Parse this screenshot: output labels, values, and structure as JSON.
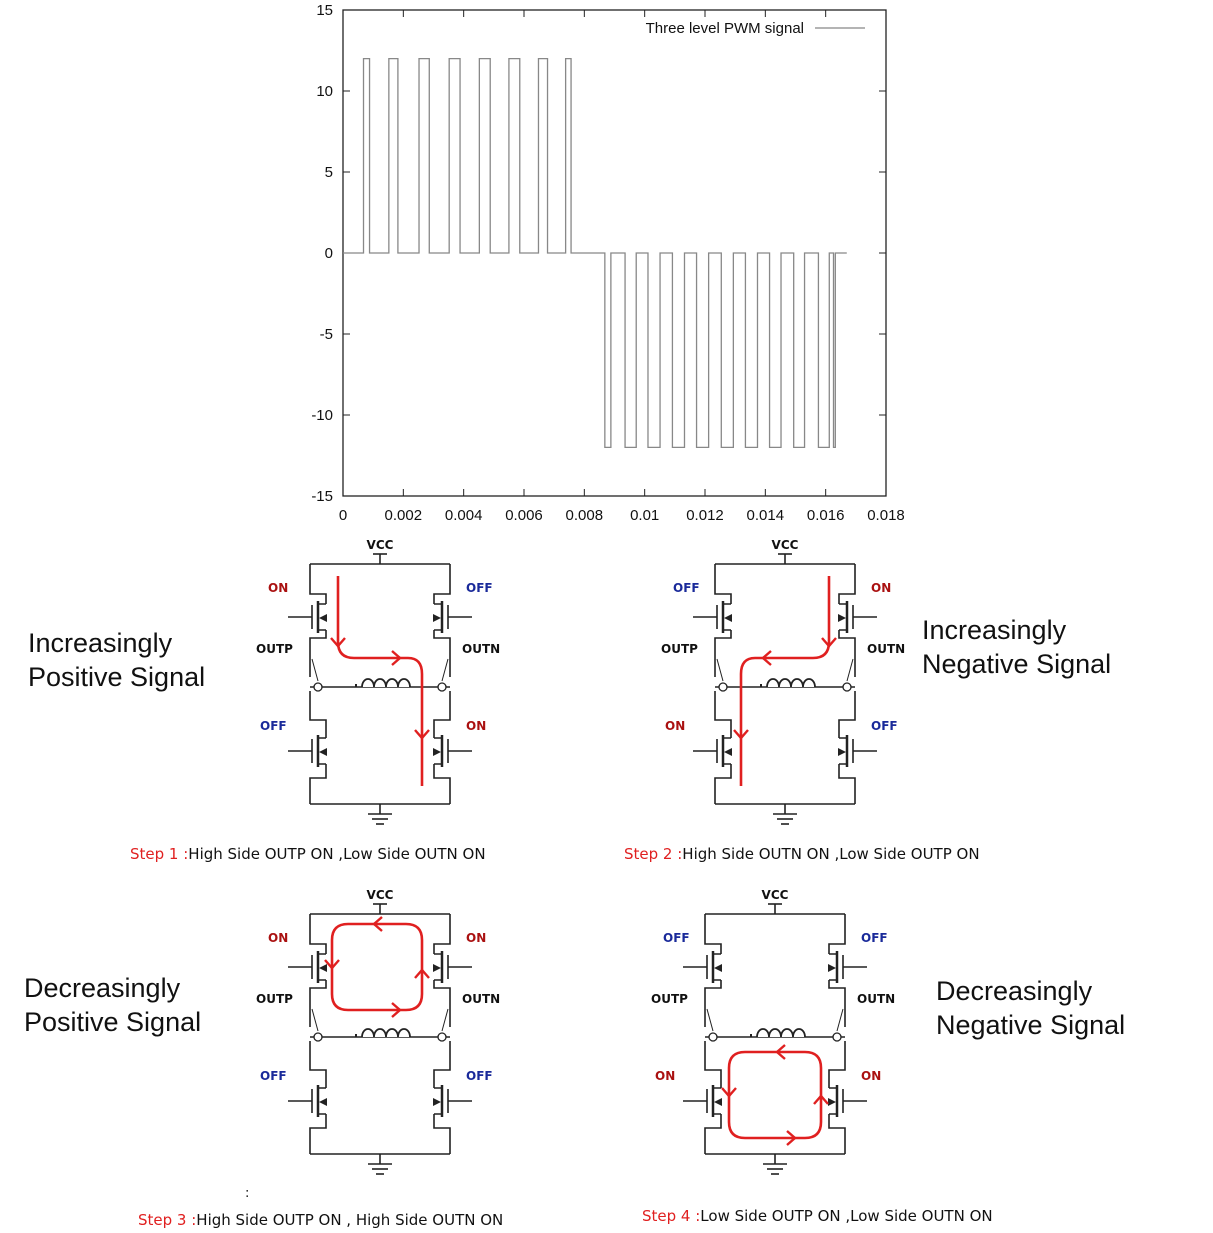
{
  "chart_data": {
    "type": "line",
    "title": "",
    "xlabel": "",
    "ylabel": "",
    "xlim": [
      0,
      0.018
    ],
    "ylim": [
      -15,
      15
    ],
    "xticks": [
      "0",
      "0.002",
      "0.004",
      "0.006",
      "0.008",
      "0.01",
      "0.012",
      "0.014",
      "0.016",
      "0.018"
    ],
    "yticks": [
      "15",
      "10",
      "5",
      "0",
      "-5",
      "-10",
      "-15"
    ],
    "legend": "top-right",
    "series": [
      {
        "name": "Three level PWM signal",
        "color": "#888888",
        "levels": [
          12,
          0,
          -12
        ],
        "positive_pulses": [
          [
            0.00068,
            0.00088
          ],
          [
            0.00152,
            0.00182
          ],
          [
            0.00252,
            0.00286
          ],
          [
            0.00352,
            0.00388
          ],
          [
            0.00452,
            0.00488
          ],
          [
            0.0055,
            0.00586
          ],
          [
            0.00648,
            0.00678
          ],
          [
            0.00738,
            0.00756
          ]
        ],
        "negative_pulses": [
          [
            0.00868,
            0.00888
          ],
          [
            0.00935,
            0.00972
          ],
          [
            0.01011,
            0.01051
          ],
          [
            0.01092,
            0.01132
          ],
          [
            0.01172,
            0.01212
          ],
          [
            0.01254,
            0.01294
          ],
          [
            0.01334,
            0.01374
          ],
          [
            0.01414,
            0.01452
          ],
          [
            0.01494,
            0.0153
          ],
          [
            0.01576,
            0.01612
          ],
          [
            0.01626,
            0.01632
          ]
        ],
        "x_end": 0.0167
      }
    ]
  },
  "circuit": {
    "vcc": "VCC",
    "outp": "OUTP",
    "outn": "OUTN",
    "on": "ON",
    "off": "OFF"
  },
  "panels": [
    {
      "label": "Increasingly\nPositive Signal",
      "step": "Step 1 :",
      "caption": "High Side OUTP ON ,Low Side OUTN ON",
      "switches": [
        "ON",
        "OFF",
        "OFF",
        "ON"
      ]
    },
    {
      "label": "Increasingly\nNegative Signal",
      "step": "Step 2 :",
      "caption": "High Side OUTN ON ,Low Side OUTP ON",
      "switches": [
        "OFF",
        "ON",
        "ON",
        "OFF"
      ]
    },
    {
      "label": "Decreasingly\nPositive Signal",
      "step": "Step 3 :",
      "caption": "High Side OUTP ON , High Side OUTN ON",
      "switches": [
        "ON",
        "ON",
        "OFF",
        "OFF"
      ]
    },
    {
      "label": "Decreasingly\nNegative Signal",
      "step": "Step 4 :",
      "caption": "Low Side OUTP ON ,Low Side OUTN ON",
      "switches": [
        "OFF",
        "OFF",
        "ON",
        "ON"
      ]
    }
  ],
  "stray_mark": ":",
  "colors": {
    "on": "#aa1111",
    "off": "#1a2a9a",
    "current": "#e02020",
    "wire": "#222222"
  }
}
